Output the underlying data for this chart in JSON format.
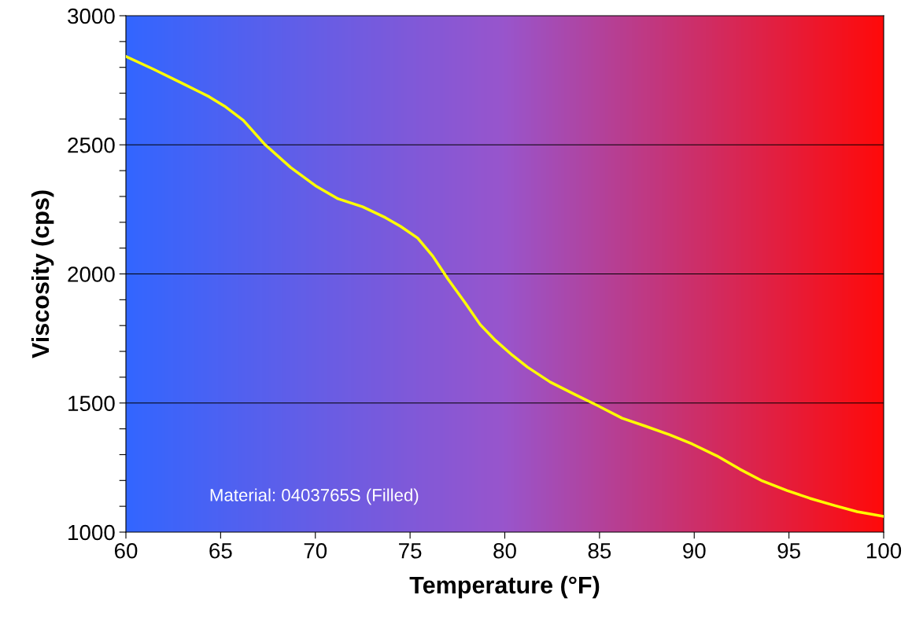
{
  "chart_data": {
    "type": "line",
    "xlabel": "Temperature (°F)",
    "ylabel": "Viscosity (cps)",
    "x": [
      60,
      61.45,
      62.9,
      64.4,
      65.2,
      66.2,
      67.3,
      68.7,
      70,
      71.2,
      72.5,
      73.7,
      74.5,
      75.4,
      76.2,
      77.0,
      77.9,
      78.7,
      79.5,
      80.4,
      81.2,
      82.4,
      83.7,
      84.9,
      86.2,
      87.4,
      88.7,
      89.9,
      91.2,
      92.4,
      93.6,
      94.9,
      96.1,
      97.4,
      98.6,
      100
    ],
    "series": [
      {
        "color": "#ffff00",
        "values": [
          2842,
          2793,
          2741,
          2686,
          2650,
          2595,
          2504,
          2412,
          2342,
          2291,
          2260,
          2218,
          2184,
          2139,
          2069,
          1980,
          1889,
          1804,
          1743,
          1685,
          1639,
          1581,
          1533,
          1490,
          1441,
          1411,
          1377,
          1341,
          1295,
          1244,
          1198,
          1161,
          1131,
          1103,
          1079,
          1061
        ]
      }
    ],
    "xlim": [
      60,
      100
    ],
    "xticks": [
      60,
      65,
      70,
      75,
      80,
      85,
      90,
      95,
      100
    ],
    "ylim": [
      1000,
      3000
    ],
    "yticks": [
      1000,
      {
        "value": 1100,
        "label": null
      },
      {
        "value": 1200,
        "label": null
      },
      {
        "value": 1300,
        "label": null
      },
      {
        "value": 1400,
        "label": null
      },
      1500,
      {
        "value": 1600,
        "label": null
      },
      {
        "value": 1700,
        "label": null
      },
      {
        "value": 1800,
        "label": null
      },
      {
        "value": 1900,
        "label": null
      },
      2000,
      {
        "value": 2100,
        "label": null
      },
      {
        "value": 2200,
        "label": null
      },
      {
        "value": 2300,
        "label": null
      },
      {
        "value": 2400,
        "label": null
      },
      2500,
      {
        "value": 2600,
        "label": null
      },
      {
        "value": 2700,
        "label": null
      },
      {
        "value": 2800,
        "label": null
      },
      {
        "value": 2900,
        "label": null
      },
      3000
    ],
    "grid": "y",
    "line_style": "solid",
    "marker": "none",
    "annotations": [
      "Material: 0403765S (Filled)"
    ]
  }
}
